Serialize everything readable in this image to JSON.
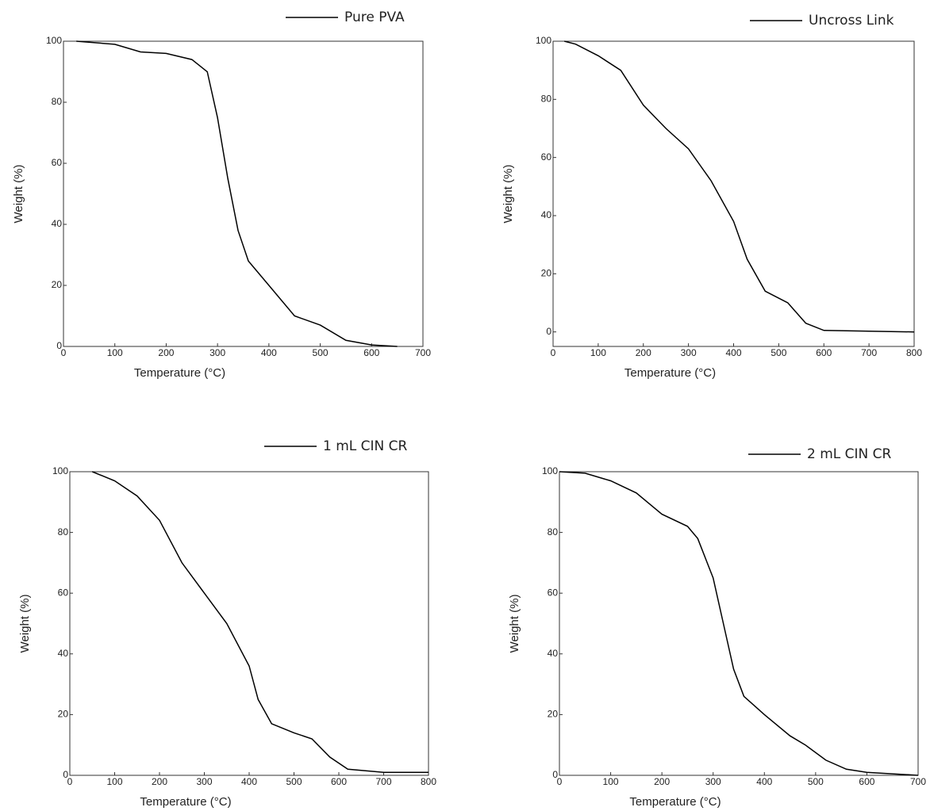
{
  "chart_data": [
    {
      "type": "line",
      "x_label": "Temperature (°C)",
      "y_label": "Weight (%)",
      "x": [
        25,
        100,
        150,
        200,
        250,
        280,
        300,
        320,
        340,
        360,
        400,
        450,
        500,
        550,
        600,
        650
      ],
      "series": [
        {
          "name": "Pure PVA",
          "color": "#000000",
          "values": [
            100,
            99,
            96.5,
            96,
            94,
            90,
            75,
            55,
            38,
            28,
            20,
            10,
            7,
            2,
            0.5,
            0
          ]
        }
      ],
      "xlim": [
        0,
        700
      ],
      "ylim": [
        0,
        100
      ],
      "xticks": [
        0,
        100,
        200,
        300,
        400,
        500,
        600,
        700
      ],
      "yticks": [
        0,
        20,
        40,
        60,
        80,
        100
      ]
    },
    {
      "type": "line",
      "x_label": "Temperature (°C)",
      "y_label": "Weight (%)",
      "x": [
        25,
        50,
        100,
        150,
        200,
        250,
        300,
        350,
        400,
        430,
        470,
        520,
        560,
        600,
        800
      ],
      "series": [
        {
          "name": "Uncross Link",
          "color": "#000000",
          "values": [
            100,
            99,
            95,
            90,
            78,
            70,
            63,
            52,
            38,
            25,
            14,
            10,
            3,
            0.5,
            0
          ]
        }
      ],
      "xlim": [
        0,
        800
      ],
      "ylim": [
        -5,
        100
      ],
      "xticks": [
        0,
        100,
        200,
        300,
        400,
        500,
        600,
        700,
        800
      ],
      "yticks": [
        0,
        20,
        40,
        60,
        80,
        100
      ]
    },
    {
      "type": "line",
      "x_label": "Temperature (°C)",
      "y_label": "Weight (%)",
      "x": [
        50,
        100,
        150,
        200,
        250,
        300,
        350,
        400,
        420,
        450,
        500,
        540,
        580,
        620,
        700,
        800
      ],
      "series": [
        {
          "name": "1 mL CIN CR",
          "color": "#000000",
          "values": [
            100,
            97,
            92,
            84,
            70,
            60,
            50,
            36,
            25,
            17,
            14,
            12,
            6,
            2,
            1,
            1
          ]
        }
      ],
      "xlim": [
        0,
        800
      ],
      "ylim": [
        0,
        100
      ],
      "xticks": [
        0,
        100,
        200,
        300,
        400,
        500,
        600,
        700,
        800
      ],
      "yticks": [
        0,
        20,
        40,
        60,
        80,
        100
      ]
    },
    {
      "type": "line",
      "x_label": "Temperature (°C)",
      "y_label": "Weight (%)",
      "x": [
        0,
        50,
        100,
        150,
        200,
        250,
        270,
        300,
        320,
        340,
        360,
        400,
        450,
        480,
        520,
        560,
        600,
        700
      ],
      "series": [
        {
          "name": "2 mL CIN CR",
          "color": "#000000",
          "values": [
            100,
            99.5,
            97,
            93,
            86,
            82,
            78,
            65,
            50,
            35,
            26,
            20,
            13,
            10,
            5,
            2,
            1,
            0
          ]
        }
      ],
      "xlim": [
        0,
        700
      ],
      "ylim": [
        0,
        100
      ],
      "xticks": [
        0,
        100,
        200,
        300,
        400,
        500,
        600,
        700
      ],
      "yticks": [
        0,
        20,
        40,
        60,
        80,
        100
      ]
    }
  ]
}
